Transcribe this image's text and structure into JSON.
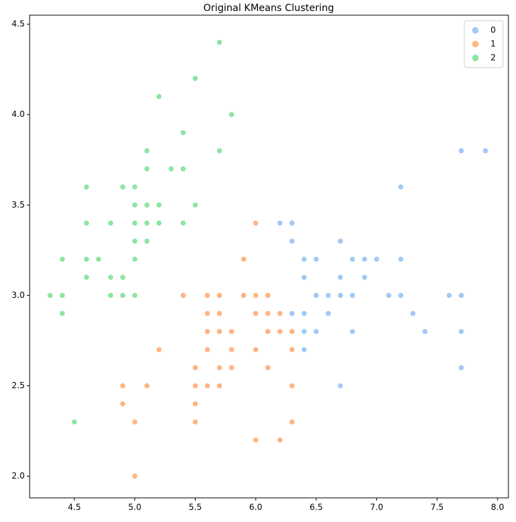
{
  "chart_data": {
    "type": "scatter",
    "title": "Original KMeans Clustering",
    "xlim": [
      4.13,
      8.09
    ],
    "ylim": [
      1.88,
      4.55
    ],
    "xticks": [
      4.5,
      {
        "value": 5,
        "label": "5.0"
      },
      5.5,
      {
        "value": 6,
        "label": "6.0"
      },
      6.5,
      {
        "value": 7,
        "label": "7.0"
      },
      7.5,
      {
        "value": 8,
        "label": "8.0"
      }
    ],
    "yticks": [
      {
        "value": 2,
        "label": "2.0"
      },
      2.5,
      {
        "value": 3,
        "label": "3.0"
      },
      3.5,
      {
        "value": 4,
        "label": "4.0"
      },
      4.5
    ],
    "grid": false,
    "legend": "upper right",
    "series": [
      {
        "name": "0",
        "color": "#a1c9f4",
        "x": [
          7.7,
          7.9,
          7.2,
          6.2,
          6.3,
          6.3,
          6.7,
          6.4,
          6.5,
          6.8,
          6.9,
          7.0,
          7.2,
          6.4,
          6.7,
          6.9,
          6.5,
          6.6,
          6.7,
          6.8,
          7.1,
          7.2,
          7.6,
          7.7,
          6.3,
          6.4,
          6.6,
          7.3,
          6.4,
          6.5,
          6.8,
          7.4,
          7.7,
          6.4,
          7.7,
          6.7
        ],
        "values": [
          3.8,
          3.8,
          3.6,
          3.4,
          3.4,
          3.3,
          3.3,
          3.2,
          3.2,
          3.2,
          3.2,
          3.2,
          3.2,
          3.1,
          3.1,
          3.1,
          3.0,
          3.0,
          3.0,
          3.0,
          3.0,
          3.0,
          3.0,
          3.0,
          2.9,
          2.9,
          2.9,
          2.9,
          2.8,
          2.8,
          2.8,
          2.8,
          2.8,
          2.7,
          2.6,
          2.5
        ]
      },
      {
        "name": "1",
        "color": "#ffb482",
        "x": [
          6.0,
          5.9,
          5.4,
          5.6,
          5.7,
          5.9,
          6.0,
          6.1,
          5.6,
          5.7,
          6.0,
          6.1,
          6.2,
          5.6,
          5.7,
          5.8,
          6.1,
          6.2,
          6.3,
          5.2,
          5.6,
          5.8,
          6.0,
          6.3,
          5.5,
          5.7,
          5.8,
          6.1,
          4.9,
          5.1,
          5.5,
          5.6,
          5.7,
          6.3,
          4.9,
          5.5,
          5.0,
          5.5,
          6.3,
          6.0,
          6.2,
          5.0
        ],
        "values": [
          3.4,
          3.2,
          3.0,
          3.0,
          3.0,
          3.0,
          3.0,
          3.0,
          2.9,
          2.9,
          2.9,
          2.9,
          2.9,
          2.8,
          2.8,
          2.8,
          2.8,
          2.8,
          2.8,
          2.7,
          2.7,
          2.7,
          2.7,
          2.7,
          2.6,
          2.6,
          2.6,
          2.6,
          2.5,
          2.5,
          2.5,
          2.5,
          2.5,
          2.5,
          2.4,
          2.4,
          2.3,
          2.3,
          2.3,
          2.2,
          2.2,
          2.0
        ]
      },
      {
        "name": "2",
        "color": "#8de5a1",
        "x": [
          5.7,
          5.5,
          5.2,
          5.8,
          5.4,
          5.1,
          5.7,
          5.1,
          5.3,
          5.4,
          4.6,
          4.9,
          5.0,
          5.0,
          5.1,
          5.2,
          5.5,
          4.6,
          4.8,
          5.0,
          5.1,
          5.2,
          5.4,
          5.0,
          5.1,
          4.4,
          4.6,
          4.7,
          5.0,
          4.6,
          4.8,
          4.9,
          4.3,
          4.4,
          4.8,
          4.9,
          5.0,
          4.4,
          4.5
        ],
        "values": [
          4.4,
          4.2,
          4.1,
          4.0,
          3.9,
          3.8,
          3.8,
          3.7,
          3.7,
          3.7,
          3.6,
          3.6,
          3.6,
          3.5,
          3.5,
          3.5,
          3.5,
          3.4,
          3.4,
          3.4,
          3.4,
          3.4,
          3.4,
          3.3,
          3.3,
          3.2,
          3.2,
          3.2,
          3.2,
          3.1,
          3.1,
          3.1,
          3.0,
          3.0,
          3.0,
          3.0,
          3.0,
          2.9,
          2.3
        ]
      }
    ]
  }
}
